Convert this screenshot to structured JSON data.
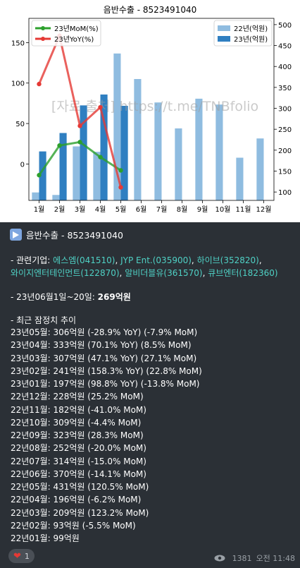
{
  "chart_data": {
    "type": "bar",
    "title": "음반수출 - 8523491040",
    "watermark": "[자료 출처] https://t.me/TNBfolio",
    "categories": [
      "1월",
      "2월",
      "3월",
      "4월",
      "5월",
      "6월",
      "7월",
      "8월",
      "9월",
      "10월",
      "11월",
      "12월"
    ],
    "left_axis": {
      "ylim": [
        -45,
        180
      ],
      "ticks": [
        0,
        50,
        100,
        150
      ]
    },
    "right_axis": {
      "ylim": [
        80,
        515
      ],
      "ticks": [
        100,
        150,
        200,
        250,
        300,
        350,
        400,
        450,
        500
      ]
    },
    "bars": [
      {
        "name": "22년(억원)",
        "color": "#8fbce0",
        "values": [
          99,
          93,
          209,
          196,
          431,
          370,
          314,
          252,
          323,
          309,
          182,
          228
        ]
      },
      {
        "name": "23년(억원)",
        "color": "#2f7fc1",
        "values": [
          197,
          241,
          307,
          333,
          306,
          null,
          null,
          null,
          null,
          null,
          null,
          null
        ]
      }
    ],
    "lines": [
      {
        "name": "23년MoM(%)",
        "color": "#2ca02c",
        "values": [
          -13.8,
          22.8,
          27.1,
          8.5,
          -7.9
        ]
      },
      {
        "name": "23년YoY(%)",
        "color": "#e53935",
        "values": [
          98.8,
          158.3,
          47.1,
          70.1,
          -28.9
        ]
      }
    ],
    "legend_left": "top-left",
    "legend_right": "top-right"
  },
  "post": {
    "title": "음반수출 - 8523491040",
    "companies_label": "- 관련기업: ",
    "companies_line1": [
      "에스엠(041510)",
      "JYP Ent.(035900)",
      "하이브(352820)"
    ],
    "companies_line2": [
      "와이지엔터테인먼트(122870)",
      "알비더블유(361570)",
      "큐브엔터(182360)"
    ],
    "recent_prefix": "- 23년06월1일~20일: ",
    "recent_value": "269억원",
    "trend_label": "- 최근 잠정치 추이",
    "trend": [
      "23년05월: 306억원 (-28.9% YoY) (-7.9% MoM)",
      "23년04월: 333억원 (70.1% YoY) (8.5% MoM)",
      "23년03월: 307억원 (47.1% YoY) (27.1% MoM)",
      "23년02월: 241억원 (158.3% YoY) (22.8% MoM)",
      "23년01월: 197억원 (98.8% YoY) (-13.8% MoM)",
      "22년12월: 228억원 (25.2% MoM)",
      "22년11월: 182억원 (-41.0% MoM)",
      "22년10월: 309억원 (-4.4% MoM)",
      "22년09월: 323억원 (28.3% MoM)",
      "22년08월: 252억원 (-20.0% MoM)",
      "22년07월: 314억원 (-15.0% MoM)",
      "22년06월: 370억원 (-14.1% MoM)",
      "22년05월: 431억원 (120.5% MoM)",
      "22년04월: 196억원 (-6.2% MoM)",
      "22년03월: 209억원 (123.2% MoM)",
      "22년02월: 93억원 (-5.5% MoM)",
      "22년01월: 99억원"
    ],
    "reaction_count": "1",
    "views": "1381",
    "time": "오전 11:48"
  }
}
